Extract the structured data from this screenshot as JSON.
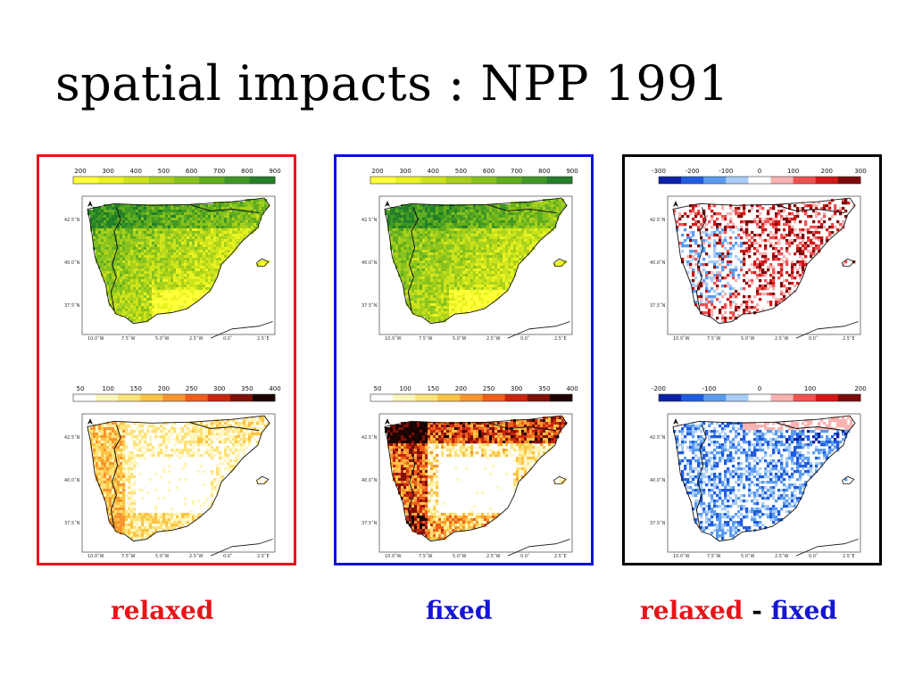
{
  "title": "spatial impacts : NPP 1991",
  "captions": {
    "relaxed": "relaxed",
    "fixed": "fixed",
    "diff_left": "relaxed",
    "diff_sep": "-",
    "diff_right": "fixed"
  },
  "colors": {
    "relaxed_border": "#e8141a",
    "fixed_border": "#0d12d6",
    "diff_border": "#000000"
  },
  "lat_labels": [
    "42.5˚N",
    "40.0˚N",
    "37.5˚N"
  ],
  "lon_labels": [
    "10.0˚W",
    "7.5˚W",
    "5.0˚W",
    "2.5˚W",
    "0.0˚",
    "2.5˚E"
  ],
  "panels": [
    {
      "maps": [
        {
          "scheme": "npp",
          "ticks": [
            "200",
            "300",
            "400",
            "500",
            "600",
            "700",
            "800",
            "900"
          ],
          "pattern": "npp_relaxed"
        },
        {
          "scheme": "heat",
          "ticks": [
            "50",
            "100",
            "150",
            "200",
            "250",
            "300",
            "350",
            "400"
          ],
          "pattern": "heat_relaxed"
        }
      ]
    },
    {
      "maps": [
        {
          "scheme": "npp",
          "ticks": [
            "200",
            "300",
            "400",
            "500",
            "600",
            "700",
            "800",
            "900"
          ],
          "pattern": "npp_fixed"
        },
        {
          "scheme": "heat",
          "ticks": [
            "50",
            "100",
            "150",
            "200",
            "250",
            "300",
            "350",
            "400"
          ],
          "pattern": "heat_fixed"
        }
      ]
    },
    {
      "maps": [
        {
          "scheme": "div",
          "ticks": [
            "-300",
            "-200",
            "-100",
            "0",
            "100",
            "200",
            "300"
          ],
          "pattern": "div_top"
        },
        {
          "scheme": "div",
          "ticks": [
            "-200",
            "-100",
            "0",
            "100",
            "200"
          ],
          "pattern": "div_bottom"
        }
      ]
    }
  ]
}
